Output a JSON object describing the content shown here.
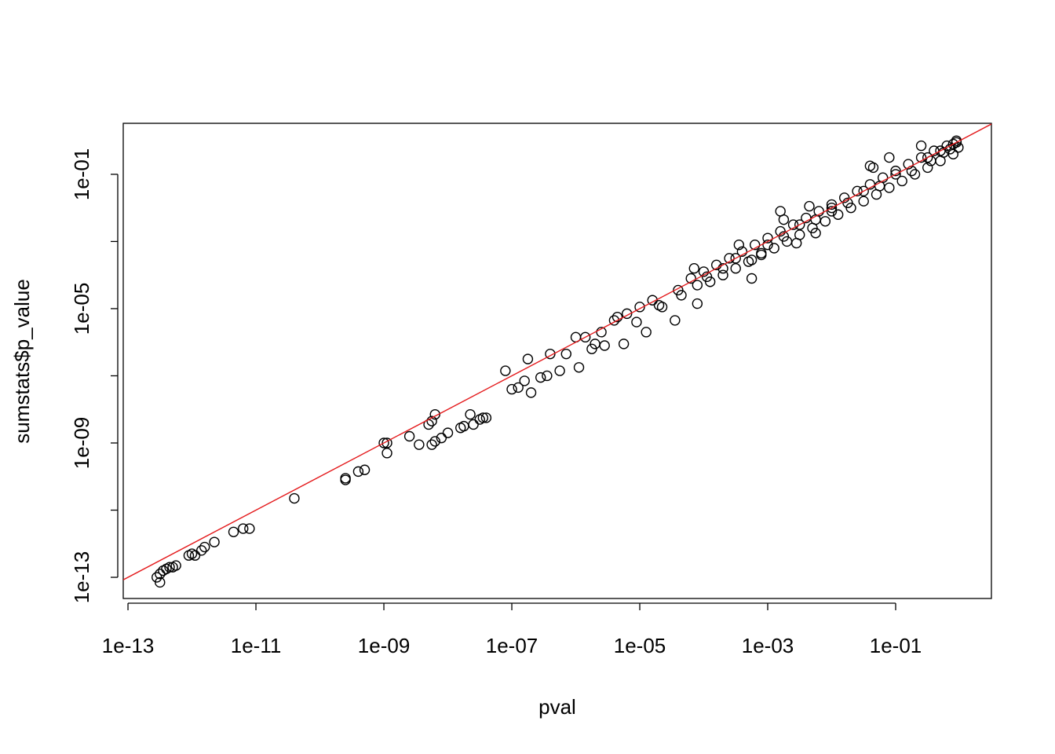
{
  "chart_data": {
    "type": "scatter",
    "x_label": "pval",
    "y_label": "sumstats$p_value",
    "xlog": true,
    "ylog": true,
    "color": "#000000",
    "marker": "open-circle",
    "xlim": [
      8.43e-14,
      3.14
    ],
    "ylim": [
      2.34e-14,
      3.3
    ],
    "xticks": [
      {
        "value": 1e-13,
        "label": "1e-13"
      },
      {
        "value": 1e-11,
        "label": "1e-11"
      },
      {
        "value": 1e-09,
        "label": "1e-09"
      },
      {
        "value": 1e-07,
        "label": "1e-07"
      },
      {
        "value": 1e-05,
        "label": "1e-05"
      },
      {
        "value": 0.001,
        "label": "1e-03"
      },
      {
        "value": 0.1,
        "label": "1e-01"
      }
    ],
    "yticks": [
      {
        "value": 1e-13,
        "label": "1e-13"
      },
      {
        "value": 1e-11,
        "label": null
      },
      {
        "value": 1e-09,
        "label": "1e-09"
      },
      {
        "value": 1e-07,
        "label": null
      },
      {
        "value": 1e-05,
        "label": "1e-05"
      },
      {
        "value": 0.001,
        "label": null
      },
      {
        "value": 0.1,
        "label": "1e-01"
      }
    ],
    "reference_line": {
      "intercept": 0,
      "slope": 1,
      "color": "#e41a1c"
    },
    "x": [
      2.82e-13,
      3.16e-13,
      3.16e-13,
      3.55e-13,
      3.98e-13,
      4.47e-13,
      5.01e-13,
      5.62e-13,
      8.91e-13,
      1e-12,
      1.12e-12,
      1.41e-12,
      1.58e-12,
      2.24e-12,
      4.47e-12,
      6.31e-12,
      7.94e-12,
      3.98e-11,
      2.51e-10,
      2.51e-10,
      3.98e-10,
      5.01e-10,
      1e-09,
      1.12e-09,
      1.12e-09,
      2.51e-09,
      3.55e-09,
      5.01e-09,
      5.62e-09,
      6.31e-09,
      5.62e-09,
      6.31e-09,
      7.94e-09,
      1e-08,
      1.58e-08,
      1.78e-08,
      2.24e-08,
      2.51e-08,
      3.16e-08,
      3.55e-08,
      3.98e-08,
      7.94e-08,
      1e-07,
      1.26e-07,
      1.58e-07,
      2e-07,
      1.78e-07,
      2.82e-07,
      3.55e-07,
      3.98e-07,
      5.62e-07,
      7.08e-07,
      1e-06,
      1.12e-06,
      1.41e-06,
      1.78e-06,
      2e-06,
      2.51e-06,
      2.82e-06,
      3.98e-06,
      4.47e-06,
      5.62e-06,
      6.31e-06,
      8.91e-06,
      1e-05,
      1.26e-05,
      1.58e-05,
      2e-05,
      2.24e-05,
      3.55e-05,
      3.98e-05,
      4.47e-05,
      7.08e-05,
      7.94e-05,
      0.000112,
      0.0002,
      0.000355,
      0.000562,
      0.000562,
      0.000794,
      0.00158,
      0.00178,
      0.00282,
      0.00447,
      0.00562,
      0.01,
      0.0398,
      0.0794,
      0.0447,
      0.251,
      0.891,
      6.31e-05,
      7.94e-05,
      0.0001,
      0.000126,
      0.000158,
      0.0002,
      0.000251,
      0.000316,
      0.000398,
      0.000501,
      0.000631,
      0.000794,
      0.001,
      0.00126,
      0.00158,
      0.002,
      0.00251,
      0.00316,
      0.00398,
      0.00501,
      0.00631,
      0.00794,
      0.01,
      0.0126,
      0.0158,
      0.02,
      0.0251,
      0.0316,
      0.0398,
      0.0501,
      0.0631,
      0.0794,
      0.1,
      0.126,
      0.158,
      0.2,
      0.251,
      0.316,
      0.398,
      0.501,
      0.631,
      0.794,
      0.891,
      0.955,
      0.000316,
      0.001,
      0.00316,
      0.01,
      0.0316,
      0.1,
      0.316,
      0.501,
      0.794,
      0.562,
      0.708,
      0.355,
      0.178,
      0.0562,
      0.0178,
      0.00562,
      0.00178
    ],
    "y": [
      1e-13,
      7.08e-14,
      1.26e-13,
      1.58e-13,
      1.78e-13,
      2e-13,
      2e-13,
      2.24e-13,
      4.47e-13,
      5.01e-13,
      4.47e-13,
      6.31e-13,
      7.94e-13,
      1.12e-12,
      2.24e-12,
      2.82e-12,
      2.82e-12,
      2.24e-11,
      8.91e-11,
      7.94e-11,
      1.41e-10,
      1.58e-10,
      1e-09,
      1e-09,
      5.01e-10,
      1.58e-09,
      8.91e-10,
      3.55e-09,
      4.47e-09,
      7.08e-09,
      8.91e-10,
      1.12e-09,
      1.41e-09,
      2e-09,
      2.82e-09,
      3.16e-09,
      7.08e-09,
      3.55e-09,
      5.01e-09,
      5.62e-09,
      5.62e-09,
      1.41e-07,
      3.98e-08,
      4.47e-08,
      7.08e-08,
      3.16e-08,
      3.16e-07,
      8.91e-08,
      1e-07,
      4.47e-07,
      1.41e-07,
      4.47e-07,
      1.41e-06,
      1.78e-07,
      1.41e-06,
      6.31e-07,
      8.91e-07,
      2e-06,
      7.94e-07,
      4.47e-06,
      5.62e-06,
      8.91e-07,
      7.08e-06,
      3.98e-06,
      1.12e-05,
      2e-06,
      1.78e-05,
      1.26e-05,
      1.12e-05,
      4.47e-06,
      3.55e-05,
      2.51e-05,
      0.000158,
      1.41e-05,
      8.91e-05,
      0.000158,
      0.000794,
      7.94e-05,
      0.000282,
      0.000447,
      0.00794,
      0.00447,
      0.000891,
      0.0112,
      0.00178,
      0.01,
      0.178,
      0.316,
      0.158,
      0.708,
      1.0,
      7.94e-05,
      5.01e-05,
      0.000126,
      6.31e-05,
      0.0002,
      0.0001,
      0.000316,
      0.000158,
      0.000501,
      0.000251,
      0.000794,
      0.000398,
      0.00126,
      0.000631,
      0.002,
      0.001,
      0.00316,
      0.00158,
      0.00501,
      0.00251,
      0.00794,
      0.00398,
      0.0126,
      0.00631,
      0.02,
      0.01,
      0.0316,
      0.0158,
      0.0501,
      0.0251,
      0.0794,
      0.0398,
      0.126,
      0.0631,
      0.2,
      0.1,
      0.316,
      0.158,
      0.501,
      0.251,
      0.708,
      0.398,
      0.891,
      0.631,
      0.000316,
      0.000794,
      0.00316,
      0.00794,
      0.0316,
      0.1,
      0.316,
      0.501,
      0.794,
      0.447,
      0.562,
      0.251,
      0.126,
      0.0447,
      0.0141,
      0.00447,
      0.00141
    ]
  }
}
